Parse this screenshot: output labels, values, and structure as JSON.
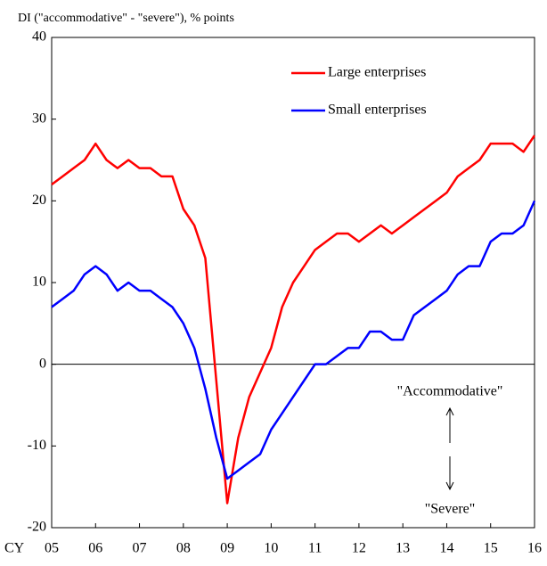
{
  "chart_data": {
    "type": "line",
    "y_label": "DI  (\"accommodative\" - \"severe\"),  % points",
    "x_prefix": "CY",
    "annotations": [
      "\"Accommodative\"",
      "\"Severe\""
    ],
    "x": [
      2005,
      2005.25,
      2005.5,
      2005.75,
      2006,
      2006.25,
      2006.5,
      2006.75,
      2007,
      2007.25,
      2007.5,
      2007.75,
      2008,
      2008.25,
      2008.5,
      2008.75,
      2009,
      2009.25,
      2009.5,
      2009.75,
      2010,
      2010.25,
      2010.5,
      2010.75,
      2011,
      2011.25,
      2011.5,
      2011.75,
      2012,
      2012.25,
      2012.5,
      2012.75,
      2013,
      2013.25,
      2013.5,
      2013.75,
      2014,
      2014.25,
      2014.5,
      2014.75,
      2015,
      2015.25,
      2015.5,
      2015.75,
      2016
    ],
    "series": [
      {
        "name": "Large enterprises",
        "color": "#ff0000",
        "values": [
          22,
          23,
          24,
          25,
          27,
          25,
          24,
          25,
          24,
          24,
          23,
          23,
          19,
          17,
          13,
          -2,
          -17,
          -9,
          -4,
          -1,
          2,
          7,
          10,
          12,
          14,
          15,
          16,
          16,
          15,
          16,
          17,
          16,
          17,
          18,
          19,
          20,
          21,
          23,
          24,
          25,
          27,
          27,
          27,
          26,
          28
        ]
      },
      {
        "name": "Small enterprises",
        "color": "#0000ff",
        "values": [
          7,
          8,
          9,
          11,
          12,
          11,
          9,
          10,
          9,
          9,
          8,
          7,
          5,
          2,
          -3,
          -9,
          -14,
          -13,
          -12,
          -11,
          -8,
          -6,
          -4,
          -2,
          0,
          0,
          1,
          2,
          2,
          4,
          4,
          3,
          3,
          6,
          7,
          8,
          9,
          11,
          12,
          12,
          15,
          16,
          16,
          17,
          20
        ]
      }
    ],
    "xlim": [
      2005,
      2016
    ],
    "xticks": [
      {
        "value": 2005,
        "label": "05"
      },
      {
        "value": 2006,
        "label": "06"
      },
      {
        "value": 2007,
        "label": "07"
      },
      {
        "value": 2008,
        "label": "08"
      },
      {
        "value": 2009,
        "label": "09"
      },
      {
        "value": 2010,
        "label": "10"
      },
      {
        "value": 2011,
        "label": "11"
      },
      {
        "value": 2012,
        "label": "12"
      },
      {
        "value": 2013,
        "label": "13"
      },
      {
        "value": 2014,
        "label": "14"
      },
      {
        "value": 2015,
        "label": "15"
      },
      {
        "value": 2016,
        "label": "16"
      }
    ],
    "ylim": [
      -20,
      40
    ],
    "yticks": [
      -20,
      -10,
      0,
      10,
      20,
      30,
      40
    ],
    "zero_line": true,
    "grid": false,
    "legend": "top-right"
  }
}
